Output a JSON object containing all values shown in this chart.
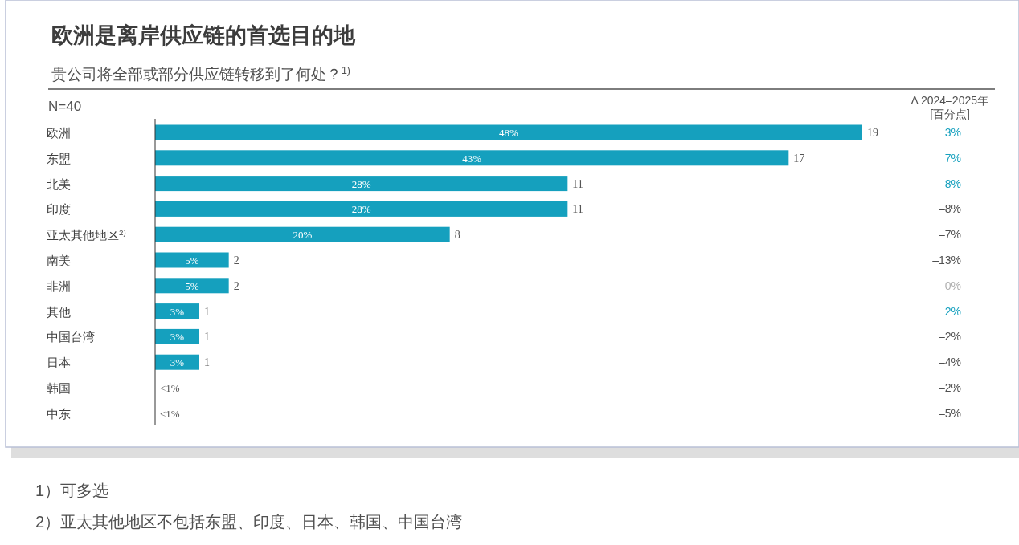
{
  "chart_data": {
    "type": "bar",
    "orientation": "horizontal",
    "title": "欧洲是离岸供应链的首选目的地",
    "subtitle": "贵公司将全部或部分供应链转移到了何处？$^{1)}$",
    "categories": [
      "欧洲",
      "东盟",
      "北美",
      "印度",
      "亚太其他地区$^{2)}$",
      "南美",
      "非洲",
      "其他",
      "中国台湾",
      "日本",
      "韩国",
      "中东"
    ],
    "values": [
      48,
      43,
      28,
      28,
      20,
      5,
      5,
      3,
      3,
      3,
      0,
      0
    ],
    "color": "#15a0be",
    "value_labels": [
      "48%",
      "43%",
      "28%",
      "28%",
      "20%",
      "5%",
      "5%",
      "3%",
      "3%",
      "3%",
      "<1%",
      "<1%"
    ],
    "annotations": [
      "N=40",
      "Δ 2024–2025年",
      "[百分点]",
      "3%",
      "7%",
      "8%",
      "–8%",
      "–7%",
      "–13%",
      "0%",
      "2%",
      "–2%",
      "–4%",
      "–2%",
      "–5%",
      {
        "text": "19",
        "x": 48,
        "y": "欧洲"
      },
      {
        "text": "17",
        "x": 43,
        "y": "东盟"
      },
      {
        "text": "11",
        "x": 28,
        "y": "北美"
      },
      {
        "text": "11",
        "x": 28,
        "y": "印度"
      },
      {
        "text": "8",
        "x": 20,
        "y": "亚太其他地区$^{2)}$"
      },
      {
        "text": "2",
        "x": 5,
        "y": "南美"
      },
      {
        "text": "2",
        "x": 5,
        "y": "非洲"
      },
      {
        "text": "1",
        "x": 3,
        "y": "其他"
      },
      {
        "text": "1",
        "x": 3,
        "y": "中国台湾"
      },
      {
        "text": "1",
        "x": 3,
        "y": "日本"
      },
      "1）可多选",
      "2）亚太其他地区不包括东盟、印度、日本、韩国、中国台湾"
    ]
  }
}
